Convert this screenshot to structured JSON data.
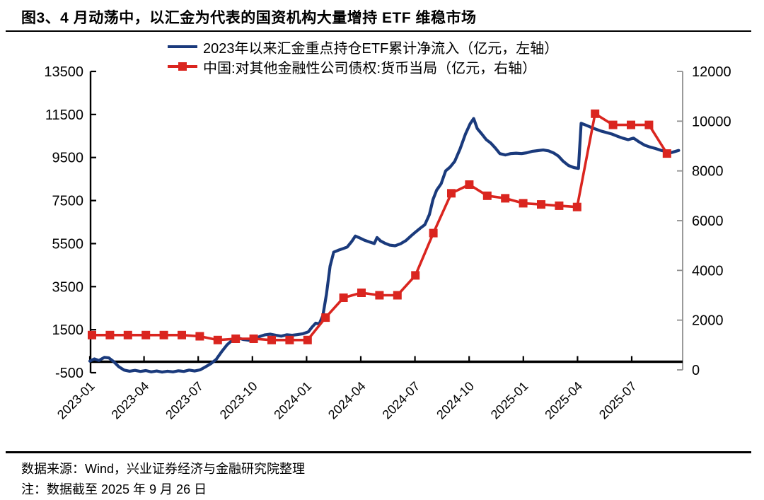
{
  "title": "图3、4 月动荡中，以汇金为代表的国资机构大量增持 ETF 维稳市场",
  "colors": {
    "blue": "#1a3a7c",
    "red": "#da251f",
    "axis": "#000000",
    "right_axis": "#8f8f8f",
    "text": "#000000"
  },
  "legend": [
    {
      "label": "2023年以来汇金重点持仓ETF累计净流入（亿元，左轴）",
      "color_key": "blue",
      "marker": "line"
    },
    {
      "label": "中国:对其他金融性公司债权:货币当局（亿元，右轴）",
      "color_key": "red",
      "marker": "line-square"
    }
  ],
  "chart_data": {
    "type": "line",
    "title": "图3、4 月动荡中，以汇金为代表的国资机构大量增持 ETF 维稳市场",
    "x_tick_labels": [
      "2023-01",
      "2023-04",
      "2023-07",
      "2023-10",
      "2024-01",
      "2024-04",
      "2024-07",
      "2024-10",
      "2025-01",
      "2025-04",
      "2025-07"
    ],
    "x_months_per_tick": 3,
    "left_axis": {
      "label": "亿元（左轴）",
      "min": -500,
      "max": 13500,
      "ticks": [
        13500,
        11500,
        9500,
        7500,
        5500,
        3500,
        1500,
        -500
      ]
    },
    "right_axis": {
      "label": "亿元（右轴）",
      "min": 0,
      "max": 12000,
      "ticks": [
        12000,
        10000,
        8000,
        6000,
        4000,
        2000,
        0
      ]
    },
    "grid": false,
    "legend_position": "top",
    "series": [
      {
        "name": "2023年以来汇金重点持仓ETF累计净流入",
        "unit": "亿元",
        "axis": "left",
        "color_key": "blue",
        "marker": "none",
        "points": [
          [
            0,
            40
          ],
          [
            0.25,
            140
          ],
          [
            0.5,
            70
          ],
          [
            0.8,
            210
          ],
          [
            1.05,
            190
          ],
          [
            1.3,
            30
          ],
          [
            1.6,
            -220
          ],
          [
            1.9,
            -380
          ],
          [
            2.2,
            -430
          ],
          [
            2.5,
            -390
          ],
          [
            2.8,
            -440
          ],
          [
            3.1,
            -400
          ],
          [
            3.4,
            -460
          ],
          [
            3.7,
            -420
          ],
          [
            4.0,
            -470
          ],
          [
            4.3,
            -430
          ],
          [
            4.6,
            -460
          ],
          [
            4.9,
            -410
          ],
          [
            5.2,
            -440
          ],
          [
            5.5,
            -380
          ],
          [
            5.8,
            -420
          ],
          [
            6.1,
            -370
          ],
          [
            6.4,
            -230
          ],
          [
            6.7,
            -80
          ],
          [
            7.0,
            120
          ],
          [
            7.3,
            480
          ],
          [
            7.6,
            800
          ],
          [
            7.9,
            1020
          ],
          [
            8.2,
            1120
          ],
          [
            8.5,
            1040
          ],
          [
            8.8,
            1010
          ],
          [
            9.1,
            1080
          ],
          [
            9.4,
            1180
          ],
          [
            9.7,
            1260
          ],
          [
            10.0,
            1290
          ],
          [
            10.3,
            1240
          ],
          [
            10.6,
            1200
          ],
          [
            10.9,
            1260
          ],
          [
            11.2,
            1240
          ],
          [
            11.5,
            1270
          ],
          [
            11.8,
            1310
          ],
          [
            12.1,
            1400
          ],
          [
            12.3,
            1620
          ],
          [
            12.5,
            1800
          ],
          [
            12.7,
            1770
          ],
          [
            12.9,
            2150
          ],
          [
            13.1,
            3150
          ],
          [
            13.3,
            4450
          ],
          [
            13.5,
            5100
          ],
          [
            13.75,
            5190
          ],
          [
            14.0,
            5260
          ],
          [
            14.25,
            5340
          ],
          [
            14.5,
            5600
          ],
          [
            14.7,
            5850
          ],
          [
            14.95,
            5760
          ],
          [
            15.2,
            5660
          ],
          [
            15.5,
            5570
          ],
          [
            15.75,
            5500
          ],
          [
            15.9,
            5780
          ],
          [
            16.1,
            5620
          ],
          [
            16.35,
            5510
          ],
          [
            16.6,
            5430
          ],
          [
            16.9,
            5400
          ],
          [
            17.2,
            5490
          ],
          [
            17.5,
            5640
          ],
          [
            17.8,
            5870
          ],
          [
            18.05,
            6050
          ],
          [
            18.3,
            6220
          ],
          [
            18.55,
            6380
          ],
          [
            18.8,
            6850
          ],
          [
            19.0,
            7550
          ],
          [
            19.2,
            7980
          ],
          [
            19.45,
            8280
          ],
          [
            19.7,
            8880
          ],
          [
            19.95,
            9060
          ],
          [
            20.2,
            9320
          ],
          [
            20.5,
            9900
          ],
          [
            20.8,
            10600
          ],
          [
            21.05,
            11060
          ],
          [
            21.25,
            11310
          ],
          [
            21.45,
            10840
          ],
          [
            21.7,
            10590
          ],
          [
            21.95,
            10330
          ],
          [
            22.2,
            10170
          ],
          [
            22.45,
            9940
          ],
          [
            22.7,
            9680
          ],
          [
            23.0,
            9620
          ],
          [
            23.3,
            9680
          ],
          [
            23.6,
            9700
          ],
          [
            23.9,
            9680
          ],
          [
            24.2,
            9720
          ],
          [
            24.5,
            9790
          ],
          [
            24.8,
            9820
          ],
          [
            25.1,
            9850
          ],
          [
            25.4,
            9810
          ],
          [
            25.7,
            9700
          ],
          [
            25.95,
            9560
          ],
          [
            26.2,
            9330
          ],
          [
            26.5,
            9130
          ],
          [
            26.8,
            9030
          ],
          [
            27.05,
            8990
          ],
          [
            27.2,
            11090
          ],
          [
            27.45,
            11010
          ],
          [
            27.7,
            10920
          ],
          [
            28.0,
            10820
          ],
          [
            28.3,
            10730
          ],
          [
            28.6,
            10660
          ],
          [
            28.9,
            10590
          ],
          [
            29.2,
            10490
          ],
          [
            29.5,
            10400
          ],
          [
            29.8,
            10330
          ],
          [
            30.1,
            10400
          ],
          [
            30.4,
            10230
          ],
          [
            30.7,
            10080
          ],
          [
            31.0,
            9990
          ],
          [
            31.3,
            9920
          ],
          [
            31.6,
            9840
          ],
          [
            31.9,
            9780
          ],
          [
            32.2,
            9730
          ],
          [
            32.6,
            9830
          ]
        ]
      },
      {
        "name": "中国:对其他金融性公司债权:货币当局",
        "unit": "亿元",
        "axis": "right",
        "color_key": "red",
        "marker": "square",
        "start_month": "2023-01",
        "monthly_values": [
          1400,
          1400,
          1400,
          1400,
          1400,
          1400,
          1350,
          1200,
          1250,
          1250,
          1200,
          1200,
          1200,
          2100,
          2900,
          3100,
          3000,
          3000,
          3800,
          5500,
          7100,
          7450,
          7000,
          6900,
          6700,
          6650,
          6600,
          6550,
          10300,
          9850,
          9850,
          9850,
          8700
        ]
      }
    ]
  },
  "footer": {
    "source": "数据来源：Wind，兴业证券经济与金融研究院整理",
    "note": "注：数据截至 2025 年 9 月 26 日"
  }
}
